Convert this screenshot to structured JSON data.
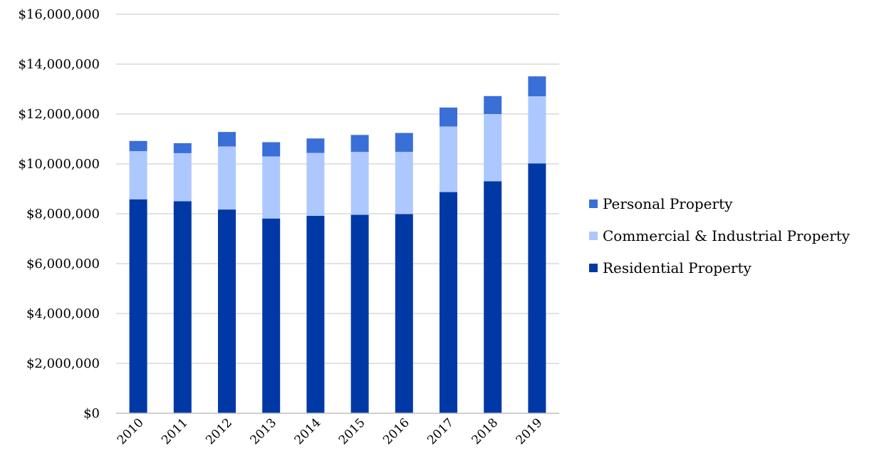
{
  "chart_data": {
    "type": "bar",
    "stacked": true,
    "title": "",
    "xlabel": "",
    "ylabel": "",
    "categories": [
      "2010",
      "2011",
      "2012",
      "2013",
      "2014",
      "2015",
      "2016",
      "2017",
      "2018",
      "2019"
    ],
    "series": [
      {
        "name": "Residential Property",
        "color": "#0039a6",
        "values": [
          8580000,
          8500000,
          8170000,
          7810000,
          7920000,
          7960000,
          7990000,
          8870000,
          9300000,
          10020000
        ]
      },
      {
        "name": "Commercial & Industrial Property",
        "color": "#adc8ff",
        "values": [
          1930000,
          1930000,
          2530000,
          2490000,
          2520000,
          2520000,
          2490000,
          2630000,
          2700000,
          2690000
        ]
      },
      {
        "name": "Personal Property",
        "color": "#3a6fd8",
        "values": [
          410000,
          400000,
          580000,
          570000,
          580000,
          680000,
          760000,
          760000,
          720000,
          800000
        ]
      }
    ],
    "ylim": [
      0,
      16000000
    ],
    "yticks": [
      {
        "value": 0,
        "label": "$0"
      },
      {
        "value": 2000000,
        "label": "$2,000,000"
      },
      {
        "value": 4000000,
        "label": "$4,000,000"
      },
      {
        "value": 6000000,
        "label": "$6,000,000"
      },
      {
        "value": 8000000,
        "label": "$8,000,000"
      },
      {
        "value": 10000000,
        "label": "$10,000,000"
      },
      {
        "value": 12000000,
        "label": "$12,000,000"
      },
      {
        "value": 14000000,
        "label": "$14,000,000"
      },
      {
        "value": 16000000,
        "label": "$16,000,000"
      }
    ],
    "grid": true,
    "legend": {
      "position": "right",
      "order": [
        "Personal Property",
        "Commercial & Industrial Property",
        "Residential Property"
      ]
    },
    "gridline_color": "#d9d9d9",
    "axis_color": "#bfbfbf"
  }
}
